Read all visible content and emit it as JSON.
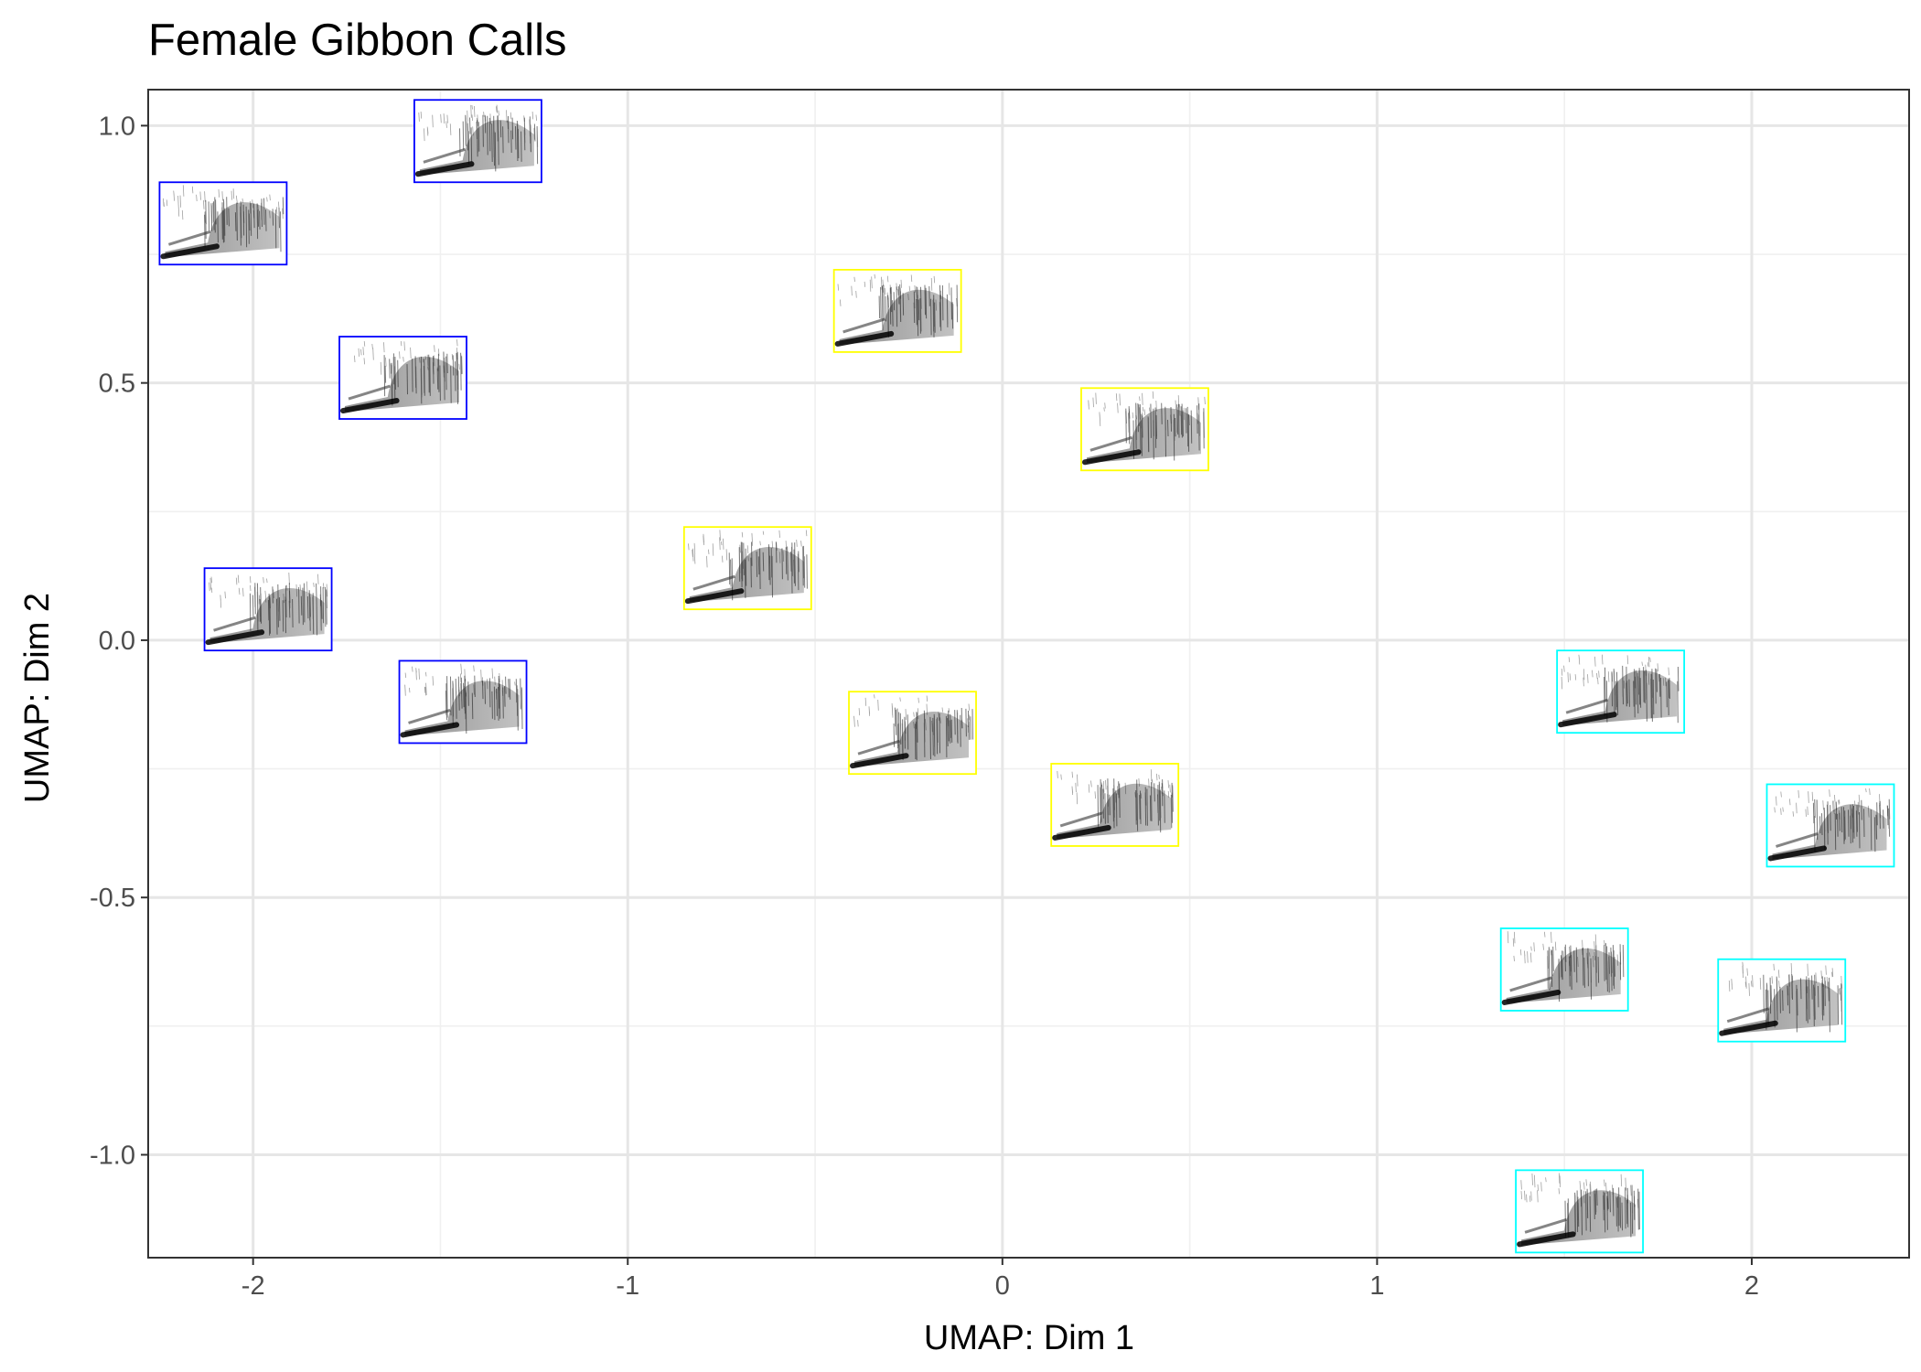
{
  "chart_data": {
    "type": "scatter",
    "title": "Female Gibbon Calls",
    "xlabel": "UMAP: Dim 1",
    "ylabel": "UMAP: Dim 2",
    "xlim": [
      -2.28,
      2.42
    ],
    "ylim": [
      -1.2,
      1.07
    ],
    "x_ticks": [
      -2,
      -1,
      0,
      1,
      2
    ],
    "x_tick_labels": [
      "-2",
      "-1",
      "0",
      "1",
      "2"
    ],
    "y_ticks": [
      -1.0,
      -0.5,
      0.0,
      0.5,
      1.0
    ],
    "y_tick_labels": [
      "-1.0",
      "-0.5",
      "0.0",
      "0.5",
      "1.0"
    ],
    "grid": true,
    "legend": "none",
    "marker": "spectrogram thumbnail framed by a coloured border",
    "series": [
      {
        "color": "#0000ff",
        "points": [
          {
            "x": -1.4,
            "y": 0.97
          },
          {
            "x": -2.08,
            "y": 0.81
          },
          {
            "x": -1.6,
            "y": 0.51
          },
          {
            "x": -1.96,
            "y": 0.06
          },
          {
            "x": -1.44,
            "y": -0.12
          }
        ]
      },
      {
        "color": "#ffff00",
        "points": [
          {
            "x": -0.28,
            "y": 0.64
          },
          {
            "x": 0.38,
            "y": 0.41
          },
          {
            "x": -0.68,
            "y": 0.14
          },
          {
            "x": -0.24,
            "y": -0.18
          },
          {
            "x": 0.3,
            "y": -0.32
          }
        ]
      },
      {
        "color": "#00ffff",
        "points": [
          {
            "x": 1.65,
            "y": -0.1
          },
          {
            "x": 2.21,
            "y": -0.36
          },
          {
            "x": 1.5,
            "y": -0.64
          },
          {
            "x": 2.08,
            "y": -0.7
          },
          {
            "x": 1.54,
            "y": -1.11
          }
        ]
      }
    ]
  }
}
